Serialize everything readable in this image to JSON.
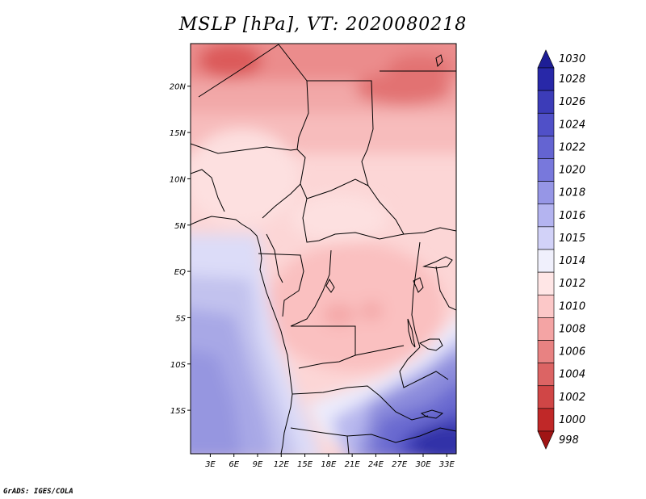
{
  "title": "MSLP [hPa], VT: 2020080218",
  "footer": "GrADS: IGES/COLA",
  "map": {
    "lat_labels": [
      {
        "text": "20N",
        "lat": 20
      },
      {
        "text": "15N",
        "lat": 15
      },
      {
        "text": "10N",
        "lat": 10
      },
      {
        "text": "5N",
        "lat": 5
      },
      {
        "text": "EQ",
        "lat": 0
      },
      {
        "text": "5S",
        "lat": -5
      },
      {
        "text": "10S",
        "lat": -10
      },
      {
        "text": "15S",
        "lat": -15
      }
    ],
    "lon_labels": [
      {
        "text": "3E",
        "lon": 3
      },
      {
        "text": "6E",
        "lon": 6
      },
      {
        "text": "9E",
        "lon": 9
      },
      {
        "text": "12E",
        "lon": 12
      },
      {
        "text": "15E",
        "lon": 15
      },
      {
        "text": "18E",
        "lon": 18
      },
      {
        "text": "21E",
        "lon": 21
      },
      {
        "text": "24E",
        "lon": 24
      },
      {
        "text": "27E",
        "lon": 27
      },
      {
        "text": "30E",
        "lon": 30
      },
      {
        "text": "33E",
        "lon": 33
      }
    ]
  },
  "colorbar": {
    "levels": [
      "1030",
      "1028",
      "1026",
      "1024",
      "1022",
      "1020",
      "1018",
      "1016",
      "1015",
      "1014",
      "1012",
      "1010",
      "1008",
      "1006",
      "1004",
      "1002",
      "1000",
      "998"
    ],
    "colors": [
      "#1e1e96",
      "#2828a8",
      "#3c3cb8",
      "#5050c8",
      "#6464d2",
      "#7878dc",
      "#9696e6",
      "#b4b4f0",
      "#d2d2f8",
      "#f0f0fc",
      "#ffe6e6",
      "#fcc8c8",
      "#f4a4a4",
      "#e88282",
      "#dc6464",
      "#d04646",
      "#c02828",
      "#a01414"
    ]
  }
}
